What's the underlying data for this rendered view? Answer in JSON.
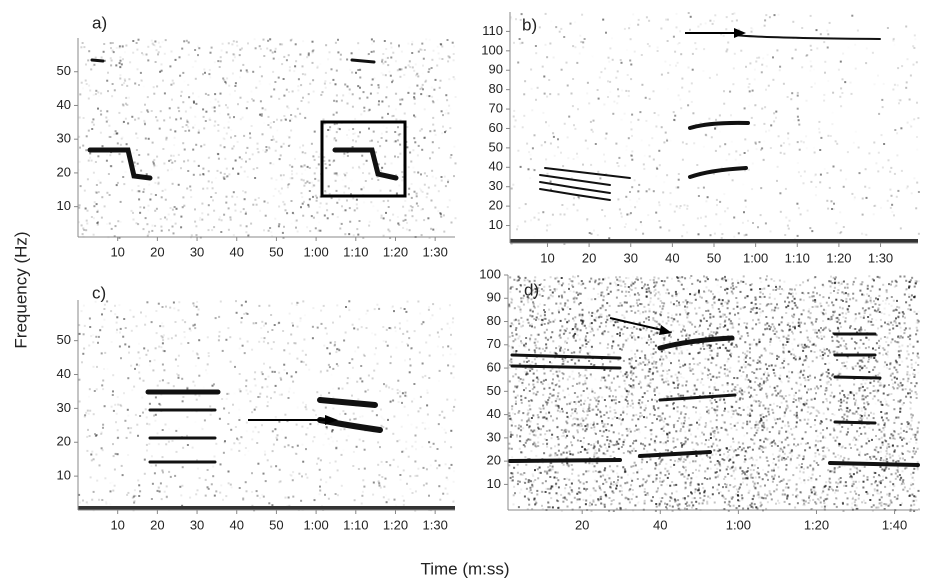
{
  "figure": {
    "y_label": "Frequency (Hz)",
    "x_label": "Time (m:ss)"
  },
  "chart_data": [
    {
      "type": "spectrogram",
      "title": "a)",
      "xlim": [
        0,
        95
      ],
      "ylim": [
        1,
        60
      ],
      "xticks": [
        10,
        20,
        30,
        40,
        50,
        {
          "value": 60,
          "label": "1:00"
        },
        {
          "value": 70,
          "label": "1:10"
        },
        {
          "value": 80,
          "label": "1:20"
        },
        {
          "value": 90,
          "label": "1:30"
        }
      ],
      "yticks": [
        10,
        20,
        30,
        40,
        50
      ]
    },
    {
      "type": "spectrogram",
      "title": "b)",
      "xlim": [
        1,
        99
      ],
      "ylim": [
        1,
        120
      ],
      "xticks": [
        10,
        20,
        30,
        40,
        50,
        {
          "value": 60,
          "label": "1:00"
        },
        {
          "value": 70,
          "label": "1:10"
        },
        {
          "value": 80,
          "label": "1:20"
        },
        {
          "value": 90,
          "label": "1:30"
        }
      ],
      "yticks": [
        10,
        20,
        30,
        40,
        50,
        60,
        70,
        80,
        90,
        100,
        110
      ]
    },
    {
      "type": "spectrogram",
      "title": "c)",
      "xlim": [
        0,
        95
      ],
      "ylim": [
        0,
        62
      ],
      "xticks": [
        10,
        20,
        30,
        40,
        50,
        {
          "value": 60,
          "label": "1:00"
        },
        {
          "value": 70,
          "label": "1:10"
        },
        {
          "value": 80,
          "label": "1:20"
        },
        {
          "value": 90,
          "label": "1:30"
        }
      ],
      "yticks": [
        10,
        20,
        30,
        40,
        50
      ]
    },
    {
      "type": "spectrogram",
      "title": "d)",
      "xlim": [
        1,
        106
      ],
      "ylim": [
        -1,
        100
      ],
      "xticks": [
        20,
        40,
        {
          "value": 60,
          "label": "1:00"
        },
        {
          "value": 80,
          "label": "1:20"
        },
        {
          "value": 100,
          "label": "1:40"
        }
      ],
      "yticks": [
        10,
        20,
        30,
        40,
        50,
        60,
        70,
        80,
        90,
        100
      ]
    }
  ]
}
